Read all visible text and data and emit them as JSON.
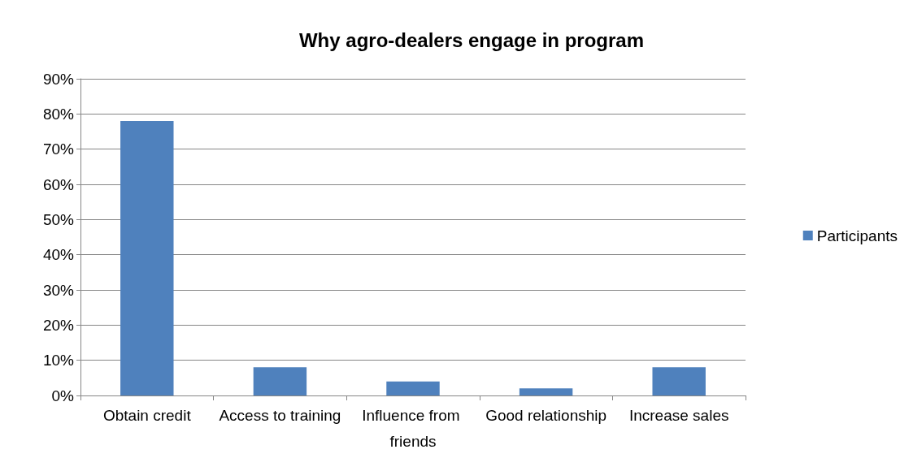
{
  "chart_data": {
    "type": "bar",
    "title": "Why agro-dealers engage in program",
    "categories": [
      "Obtain credit",
      "Access to training",
      "Influence from friends",
      "Good relationship",
      "Increase sales"
    ],
    "series": [
      {
        "name": "Participants",
        "color": "#4f81bd",
        "values": [
          78,
          8,
          4,
          2,
          8
        ]
      }
    ],
    "ylim": [
      0,
      90
    ],
    "yticks": [
      {
        "value": 0,
        "label": "0%"
      },
      {
        "value": 10,
        "label": "10%"
      },
      {
        "value": 20,
        "label": "20%"
      },
      {
        "value": 30,
        "label": "30%"
      },
      {
        "value": 40,
        "label": "40%"
      },
      {
        "value": 50,
        "label": "50%"
      },
      {
        "value": 60,
        "label": "60%"
      },
      {
        "value": 70,
        "label": "70%"
      },
      {
        "value": 80,
        "label": "80%"
      },
      {
        "value": 90,
        "label": "90%"
      }
    ],
    "grid": "y",
    "legend": "right"
  }
}
